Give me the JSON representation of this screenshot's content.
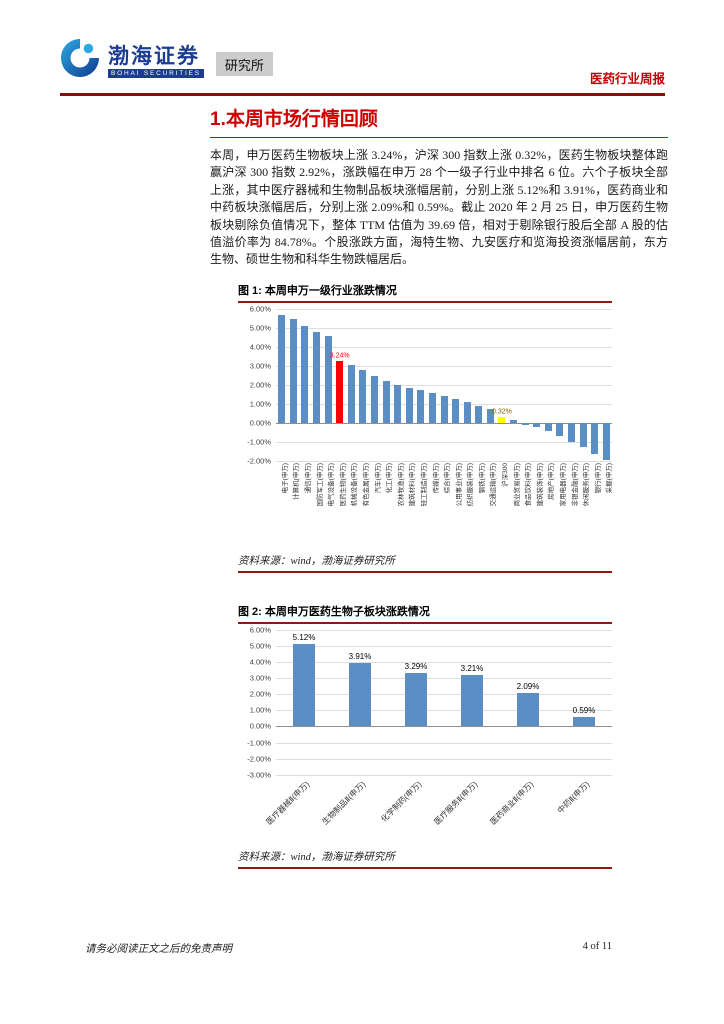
{
  "header": {
    "brand_cn": "渤海证券",
    "brand_en": "BOHAI SECURITIES",
    "dept": "研究所",
    "report_type": "医药行业周报"
  },
  "section": {
    "title": "1.本周市场行情回顾"
  },
  "body": {
    "paragraph": "本周，申万医药生物板块上涨 3.24%，沪深 300 指数上涨 0.32%，医药生物板块整体跑赢沪深 300 指数 2.92%，涨跌幅在申万 28 个一级子行业中排名 6 位。六个子板块全部上涨，其中医疗器械和生物制品板块涨幅居前，分别上涨 5.12%和 3.91%，医药商业和中药板块涨幅居后，分别上涨 2.09%和 0.59%。截止 2020 年 2 月 25 日，申万医药生物板块剔除负值情况下，整体 TTM 估值为 39.69 倍，相对于剔除银行股后全部 A 股的估值溢价率为 84.78%。个股涨跌方面，海特生物、九安医疗和览海投资涨幅居前，东方生物、硕世生物和科华生物跌幅居后。"
  },
  "figure1": {
    "caption": "图 1: 本周申万一级行业涨跌情况",
    "source": "资料来源：wind，渤海证券研究所"
  },
  "figure2": {
    "caption": "图 2: 本周申万医药生物子板块涨跌情况",
    "source": "资料来源：wind，渤海证券研究所"
  },
  "footer": {
    "disclaimer": "请务必阅读正文之后的免责声明",
    "page": "4 of 11"
  },
  "chart_data": [
    {
      "type": "bar",
      "title": "本周申万一级行业涨跌情况",
      "ylim": [
        -2,
        6
      ],
      "ytick_step": 1,
      "grid": true,
      "legend": "none",
      "bar_color": "#5B8EC4",
      "categories": [
        "电子(申万)",
        "计算机(申万)",
        "通信(申万)",
        "国防军工(申万)",
        "电气设备(申万)",
        "医药生物(申万)",
        "机械设备(申万)",
        "有色金属(申万)",
        "汽车(申万)",
        "化工(申万)",
        "农林牧渔(申万)",
        "建筑材料(申万)",
        "轻工制造(申万)",
        "传媒(申万)",
        "综合(申万)",
        "公用事业(申万)",
        "纺织服装(申万)",
        "钢铁(申万)",
        "交通运输(申万)",
        "沪深300",
        "商业贸易(申万)",
        "食品饮料(申万)",
        "建筑装饰(申万)",
        "房地产(申万)",
        "家用电器(申万)",
        "非银金融(申万)",
        "休闲服务(申万)",
        "银行(申万)",
        "采掘(申万)"
      ],
      "values": [
        5.68,
        5.45,
        5.1,
        4.75,
        4.55,
        3.24,
        3.05,
        2.75,
        2.45,
        2.2,
        2.0,
        1.85,
        1.7,
        1.55,
        1.4,
        1.25,
        1.1,
        0.9,
        0.7,
        0.32,
        0.15,
        -0.1,
        -0.25,
        -0.45,
        -0.7,
        -1.0,
        -1.3,
        -1.65,
        -1.95
      ],
      "highlights": [
        {
          "index": 5,
          "color": "#FF0000",
          "data_label": "3.24%",
          "label_color": "#FF0000"
        },
        {
          "index": 19,
          "color": "#FFFF00",
          "data_label": "0.32%",
          "label_color": "#7F6000"
        }
      ]
    },
    {
      "type": "bar",
      "title": "本周申万医药生物子板块涨跌情况",
      "ylim": [
        -3,
        6
      ],
      "ytick_step": 1,
      "grid": true,
      "legend": "none",
      "bar_color": "#5B8EC4",
      "categories": [
        "医疗器械Ⅱ(申万)",
        "生物制品Ⅱ(申万)",
        "化学制药(申万)",
        "医疗服务Ⅱ(申万)",
        "医药商业Ⅱ(申万)",
        "中药Ⅱ(申万)"
      ],
      "values": [
        5.12,
        3.91,
        3.29,
        3.21,
        2.09,
        0.59
      ],
      "data_labels": [
        "5.12%",
        "3.91%",
        "3.29%",
        "3.21%",
        "2.09%",
        "0.59%"
      ],
      "data_label_color": "#000000"
    }
  ]
}
